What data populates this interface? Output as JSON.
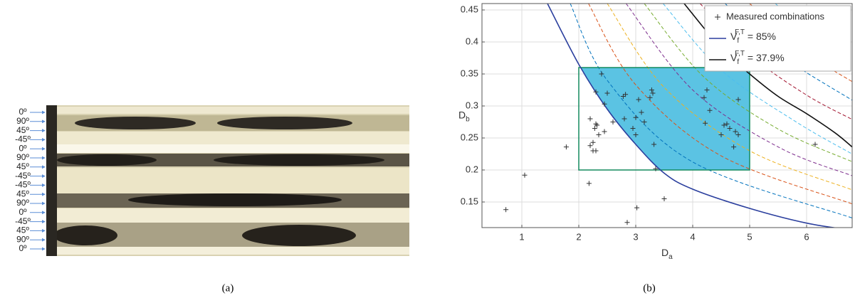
{
  "panel_a": {
    "layer_labels": [
      "0º",
      "90º",
      "45º",
      "-45º",
      "0º",
      "90º",
      "45º",
      "-45º",
      "-45º",
      "45º",
      "90º",
      "0º",
      "-45º",
      "45º",
      "90º",
      "0º"
    ],
    "caption": "(a)"
  },
  "chart_data": {
    "type": "scatter",
    "caption": "(b)",
    "x_label": {
      "base": "D",
      "sub": "a"
    },
    "y_label": {
      "base": "D",
      "sub": "b"
    },
    "xlim": [
      0.3,
      6.8
    ],
    "ylim": [
      0.11,
      0.46
    ],
    "xticks": [
      1,
      2,
      3,
      4,
      5,
      6
    ],
    "yticks": [
      0.15,
      0.2,
      0.25,
      0.3,
      0.35,
      0.4,
      0.45
    ],
    "grid": true,
    "legend": "upper right",
    "box": {
      "x": [
        2,
        5
      ],
      "y": [
        0.2,
        0.36
      ],
      "color": "#138a5e",
      "fill": "#5bc3e3"
    },
    "series": [
      {
        "name": "Measured combinations",
        "marker": "+",
        "color": "#333333",
        "x": [
          0.72,
          1.05,
          1.78,
          2.18,
          2.2,
          2.25,
          2.2,
          2.25,
          2.3,
          2.28,
          2.3,
          2.32,
          2.3,
          2.35,
          2.45,
          2.4,
          2.45,
          2.5,
          2.6,
          2.8,
          2.78,
          2.82,
          2.85,
          2.95,
          3.0,
          3.0,
          3.02,
          3.05,
          3.1,
          3.15,
          3.25,
          3.28,
          3.3,
          3.32,
          3.35,
          3.5,
          4.2,
          4.22,
          4.25,
          4.3,
          4.5,
          4.55,
          4.6,
          4.65,
          4.72,
          4.75,
          4.8,
          4.8,
          6.15
        ],
        "values": [
          0.138,
          0.192,
          0.236,
          0.179,
          0.28,
          0.243,
          0.238,
          0.23,
          0.23,
          0.265,
          0.272,
          0.27,
          0.322,
          0.255,
          0.26,
          0.35,
          0.303,
          0.32,
          0.275,
          0.28,
          0.315,
          0.318,
          0.118,
          0.265,
          0.255,
          0.282,
          0.141,
          0.31,
          0.29,
          0.275,
          0.313,
          0.325,
          0.32,
          0.24,
          0.202,
          0.155,
          0.313,
          0.273,
          0.325,
          0.293,
          0.255,
          0.27,
          0.272,
          0.265,
          0.236,
          0.26,
          0.255,
          0.31,
          0.24
        ]
      },
      {
        "label": {
          "base": "V",
          "sub": "f",
          "sup": "F,T",
          "text": " = 85%"
        },
        "color": "#2b3f9e",
        "x": [
          1.45,
          2,
          2.5,
          3,
          3.5,
          4,
          5,
          6,
          6.8
        ],
        "values": [
          0.46,
          0.365,
          0.295,
          0.24,
          0.195,
          0.17,
          0.14,
          0.117,
          0.106
        ]
      },
      {
        "label": {
          "base": "V",
          "sub": "f",
          "sup": "F,T",
          "text": " = 37.9%"
        },
        "color": "#111111",
        "x": [
          3.85,
          4.5,
          5,
          5.5,
          6,
          6.5,
          6.8
        ],
        "values": [
          0.46,
          0.39,
          0.35,
          0.315,
          0.288,
          0.258,
          0.236
        ]
      }
    ],
    "contours": [
      {
        "color": "#0072bd",
        "x": [
          1.85,
          2.5,
          4,
          6.8
        ],
        "values": [
          0.46,
          0.34,
          0.2125,
          0.125
        ]
      },
      {
        "color": "#d95319",
        "x": [
          2.17,
          3,
          4.5,
          6.8
        ],
        "values": [
          0.46,
          0.333,
          0.222,
          0.147
        ]
      },
      {
        "color": "#edb120",
        "x": [
          2.5,
          3.5,
          5,
          6.8
        ],
        "values": [
          0.46,
          0.329,
          0.23,
          0.169
        ]
      },
      {
        "color": "#7e2f8e",
        "x": [
          2.83,
          4,
          5.5,
          6.8
        ],
        "values": [
          0.46,
          0.325,
          0.236,
          0.191
        ]
      },
      {
        "color": "#77ac30",
        "x": [
          3.15,
          4.2,
          5.5,
          6.8
        ],
        "values": [
          0.46,
          0.345,
          0.264,
          0.213
        ]
      },
      {
        "color": "#4dbeee",
        "x": [
          3.48,
          4.5,
          5.8,
          6.8
        ],
        "values": [
          0.46,
          0.356,
          0.276,
          0.225
        ]
      },
      {
        "color": "#a2142f",
        "x": [
          4.13,
          5,
          6,
          6.8
        ],
        "values": [
          0.46,
          0.38,
          0.317,
          0.279
        ]
      },
      {
        "color": "#0072bd",
        "x": [
          4.57,
          5.5,
          6.8
        ],
        "values": [
          0.46,
          0.382,
          0.309
        ]
      },
      {
        "color": "#d95319",
        "x": [
          5,
          6,
          6.8
        ],
        "values": [
          0.46,
          0.383,
          0.338
        ]
      },
      {
        "color": "#4dbeee",
        "x": [
          5.45,
          6.2,
          6.8
        ],
        "values": [
          0.46,
          0.405,
          0.369
        ]
      }
    ]
  }
}
